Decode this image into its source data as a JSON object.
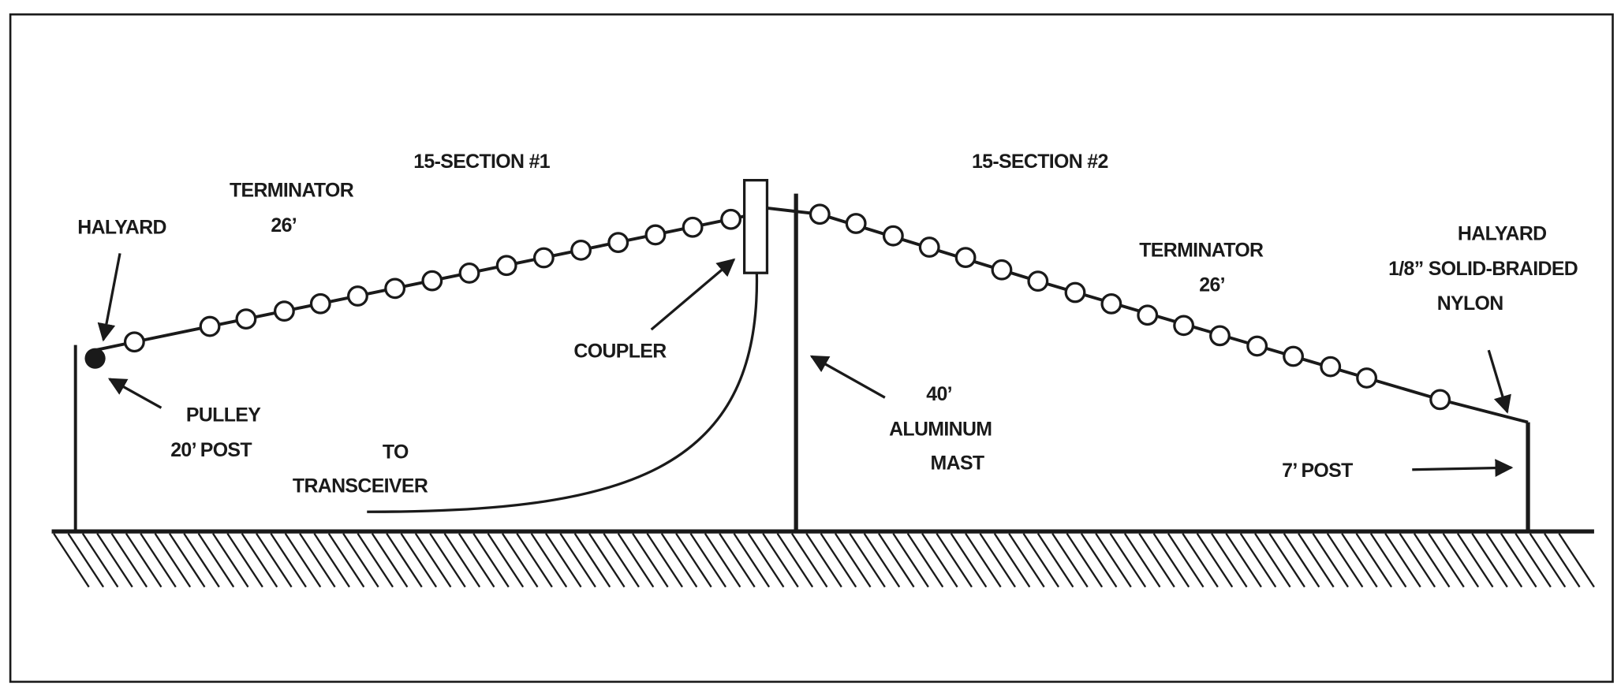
{
  "diagram": {
    "labels": {
      "halyard_left": "HALYARD",
      "terminator_left": "TERMINATOR",
      "terminator_left_length": "26’",
      "section_1": "15-SECTION #1",
      "section_2": "15-SECTION #2",
      "terminator_right": "TERMINATOR",
      "terminator_right_length": "26’",
      "halyard_right": "HALYARD",
      "halyard_right_spec_1": "1/8” SOLID-BRAIDED",
      "halyard_right_spec_2": "NYLON",
      "coupler": "COUPLER",
      "pulley": "PULLEY",
      "post_left": "20’ POST",
      "to": "TO",
      "transceiver": "TRANSCEIVER",
      "mast_height": "40’",
      "mast_material": "ALUMINUM",
      "mast": "MAST",
      "post_right": "7’ POST"
    }
  }
}
